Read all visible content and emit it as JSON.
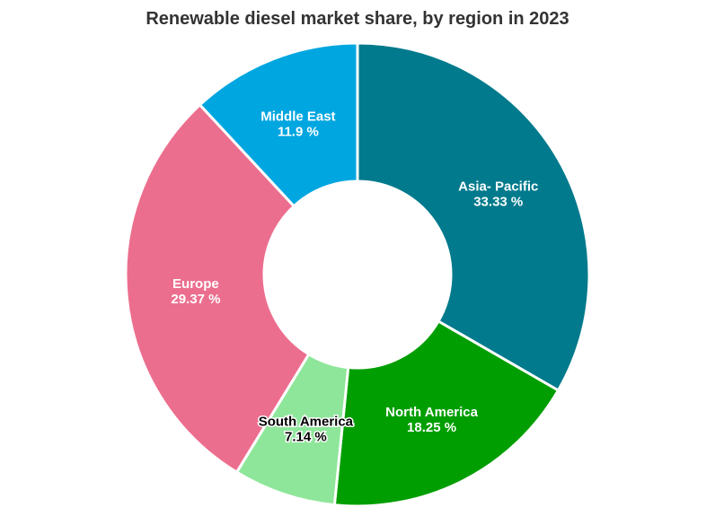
{
  "chart_data": {
    "type": "pie",
    "title": "Renewable diesel market share, by region in 2023",
    "donut": true,
    "categories": [
      "Asia- Pacific",
      "North America",
      "South America",
      "Europe",
      "Middle East"
    ],
    "values": [
      33.33,
      18.25,
      7.14,
      29.37,
      11.9
    ],
    "value_labels": [
      "33.33 %",
      "18.25 %",
      "7.14 %",
      "29.37 %",
      "11.9 %"
    ],
    "colors": [
      "#007a8c",
      "#009e00",
      "#8ee69a",
      "#ec6e8e",
      "#00a6e0"
    ],
    "label_colors": [
      "#ffffff",
      "#ffffff",
      "#000000",
      "#ffffff",
      "#ffffff"
    ],
    "legend": "none"
  }
}
